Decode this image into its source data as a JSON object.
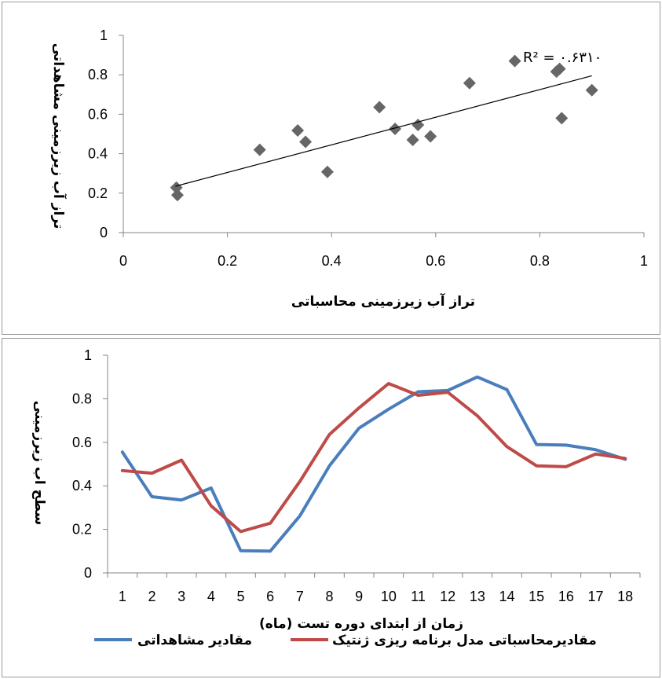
{
  "chart_data": [
    {
      "type": "scatter",
      "xlabel": "تراز آب زیرزمینی محاسباتی",
      "ylabel": "تراز آب زیرزمینی مشاهداتی",
      "xlim": [
        0,
        1
      ],
      "ylim": [
        0,
        1
      ],
      "xticks": [
        "0",
        "0.2",
        "0.4",
        "0.6",
        "0.8",
        "1"
      ],
      "yticks": [
        "0",
        "0.2",
        "0.4",
        "0.6",
        "0.8",
        "1"
      ],
      "grid": false,
      "marker": "diamond",
      "marker_color": "#666666",
      "trendline": {
        "type": "linear",
        "x": [
          0.1,
          0.9
        ],
        "y": [
          0.235,
          0.795
        ],
        "label": "R² = ۰.۶۳۱۰"
      },
      "points": [
        {
          "x": 0.102,
          "y": 0.228
        },
        {
          "x": 0.104,
          "y": 0.19
        },
        {
          "x": 0.262,
          "y": 0.42
        },
        {
          "x": 0.335,
          "y": 0.518
        },
        {
          "x": 0.35,
          "y": 0.46
        },
        {
          "x": 0.392,
          "y": 0.308
        },
        {
          "x": 0.492,
          "y": 0.636
        },
        {
          "x": 0.522,
          "y": 0.526
        },
        {
          "x": 0.556,
          "y": 0.47
        },
        {
          "x": 0.566,
          "y": 0.546
        },
        {
          "x": 0.59,
          "y": 0.488
        },
        {
          "x": 0.665,
          "y": 0.758
        },
        {
          "x": 0.752,
          "y": 0.87
        },
        {
          "x": 0.832,
          "y": 0.816
        },
        {
          "x": 0.838,
          "y": 0.83
        },
        {
          "x": 0.842,
          "y": 0.58
        },
        {
          "x": 0.9,
          "y": 0.722
        }
      ]
    },
    {
      "type": "line",
      "xlabel": "زمان از ابتدای دوره تست (ماه)",
      "ylabel": "سطح اب زیرزمینی",
      "categories": [
        "1",
        "2",
        "3",
        "4",
        "5",
        "6",
        "7",
        "8",
        "9",
        "10",
        "11",
        "12",
        "13",
        "14",
        "15",
        "16",
        "17",
        "18"
      ],
      "ylim": [
        0,
        1
      ],
      "yticks": [
        "0",
        "0.2",
        "0.4",
        "0.6",
        "0.8",
        "1"
      ],
      "grid": false,
      "legend_position": "bottom",
      "series": [
        {
          "name": "مقادیر مشاهداتی",
          "color": "#4a7ebb",
          "values": [
            0.555,
            0.35,
            0.335,
            0.39,
            0.102,
            0.1,
            0.262,
            0.492,
            0.665,
            0.752,
            0.832,
            0.838,
            0.9,
            0.842,
            0.59,
            0.587,
            0.566,
            0.522
          ]
        },
        {
          "name": "مقادیرمحاسباتی مدل برنامه ریزی ژنتیک",
          "color": "#be4b48",
          "values": [
            0.47,
            0.458,
            0.518,
            0.308,
            0.19,
            0.228,
            0.42,
            0.636,
            0.758,
            0.87,
            0.816,
            0.83,
            0.722,
            0.58,
            0.492,
            0.488,
            0.546,
            0.526
          ]
        }
      ]
    }
  ]
}
